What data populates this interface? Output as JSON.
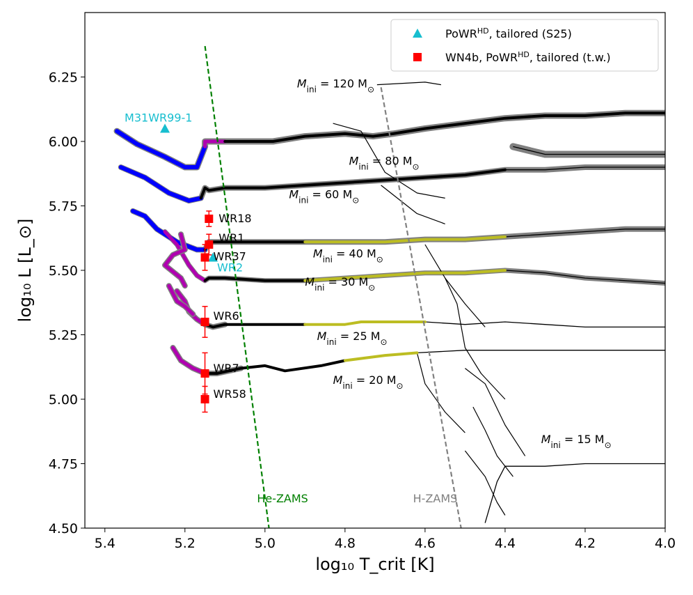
{
  "chart_data": {
    "type": "line",
    "xlabel": "log₁₀ T_crit [K]",
    "ylabel": "log₁₀ L [L_⊙]",
    "xlim": [
      5.45,
      4.0
    ],
    "ylim": [
      4.5,
      6.5
    ],
    "x_ticks": [
      "5.4",
      "5.2",
      "5.0",
      "4.8",
      "4.6",
      "4.4",
      "4.2",
      "4.0"
    ],
    "y_ticks": [
      "4.50",
      "4.75",
      "5.00",
      "5.25",
      "5.50",
      "5.75",
      "6.00",
      "6.25"
    ],
    "legend_position": "top-right",
    "legend": [
      {
        "label": "PoWR",
        "sup": "HD",
        "suffix": ", tailored (S25)",
        "marker": "triangle",
        "color": "#17becf"
      },
      {
        "label": "WN4b, PoWR",
        "sup": "HD",
        "suffix": ", tailored (t.w.)",
        "marker": "square",
        "color": "#ff0000"
      }
    ],
    "tracks": [
      {
        "name": "Mini = 120 M⊙",
        "label_main": "M",
        "label_sub": "ini",
        "label_tail": " = 120 M",
        "points": [
          [
            5.37,
            6.04
          ],
          [
            5.32,
            5.99
          ],
          [
            5.25,
            5.94
          ],
          [
            5.2,
            5.9
          ],
          [
            5.17,
            5.9
          ],
          [
            5.15,
            5.98
          ],
          [
            5.15,
            6.0
          ],
          [
            5.14,
            6.0
          ],
          [
            5.1,
            6.0
          ],
          [
            5.05,
            6.0
          ],
          [
            4.98,
            6.0
          ],
          [
            4.9,
            6.02
          ],
          [
            4.8,
            6.03
          ],
          [
            4.73,
            6.02
          ],
          [
            4.68,
            6.03
          ],
          [
            4.6,
            6.05
          ],
          [
            4.5,
            6.07
          ],
          [
            4.4,
            6.09
          ],
          [
            4.3,
            6.1
          ],
          [
            4.2,
            6.1
          ],
          [
            4.1,
            6.11
          ],
          [
            4.0,
            6.11
          ]
        ]
      },
      {
        "name": "Mini = 80 M⊙",
        "label_main": "M",
        "label_sub": "ini",
        "label_tail": " = 80 M",
        "points": [
          [
            4.38,
            5.98
          ],
          [
            4.3,
            5.95
          ],
          [
            4.2,
            5.95
          ],
          [
            4.1,
            5.95
          ],
          [
            4.0,
            5.95
          ]
        ]
      },
      {
        "name": "Mini = 60 M⊙",
        "label_main": "M",
        "label_sub": "ini",
        "label_tail": " = 60 M",
        "points": [
          [
            5.36,
            5.9
          ],
          [
            5.3,
            5.86
          ],
          [
            5.24,
            5.8
          ],
          [
            5.19,
            5.77
          ],
          [
            5.16,
            5.78
          ],
          [
            5.15,
            5.82
          ],
          [
            5.14,
            5.81
          ],
          [
            5.1,
            5.82
          ],
          [
            5.0,
            5.82
          ],
          [
            4.9,
            5.83
          ],
          [
            4.8,
            5.84
          ],
          [
            4.7,
            5.85
          ],
          [
            4.6,
            5.86
          ],
          [
            4.5,
            5.87
          ],
          [
            4.4,
            5.89
          ],
          [
            4.3,
            5.89
          ],
          [
            4.2,
            5.9
          ],
          [
            4.1,
            5.9
          ],
          [
            4.0,
            5.9
          ]
        ]
      },
      {
        "name": "Mini = 40 M⊙",
        "label_main": "M",
        "label_sub": "ini",
        "label_tail": " = 40 M",
        "points": [
          [
            5.33,
            5.73
          ],
          [
            5.3,
            5.71
          ],
          [
            5.27,
            5.66
          ],
          [
            5.22,
            5.61
          ],
          [
            5.17,
            5.58
          ],
          [
            5.15,
            5.58
          ],
          [
            5.14,
            5.61
          ],
          [
            5.1,
            5.61
          ],
          [
            5.0,
            5.61
          ],
          [
            4.9,
            5.61
          ],
          [
            4.8,
            5.61
          ],
          [
            4.7,
            5.61
          ],
          [
            4.6,
            5.62
          ],
          [
            4.5,
            5.62
          ],
          [
            4.4,
            5.63
          ],
          [
            4.3,
            5.64
          ],
          [
            4.2,
            5.65
          ],
          [
            4.1,
            5.66
          ],
          [
            4.0,
            5.66
          ]
        ]
      },
      {
        "name": "Mini = 30 M⊙",
        "label_main": "M",
        "label_sub": "ini",
        "label_tail": " = 30 M",
        "points": [
          [
            5.25,
            5.65
          ],
          [
            5.22,
            5.6
          ],
          [
            5.19,
            5.52
          ],
          [
            5.17,
            5.48
          ],
          [
            5.15,
            5.46
          ],
          [
            5.14,
            5.47
          ],
          [
            5.1,
            5.47
          ],
          [
            5.0,
            5.46
          ],
          [
            4.9,
            5.46
          ],
          [
            4.8,
            5.47
          ],
          [
            4.7,
            5.48
          ],
          [
            4.6,
            5.49
          ],
          [
            4.5,
            5.49
          ],
          [
            4.4,
            5.5
          ],
          [
            4.3,
            5.49
          ],
          [
            4.2,
            5.47
          ],
          [
            4.1,
            5.46
          ],
          [
            4.0,
            5.45
          ]
        ]
      },
      {
        "name": "Mini = 25 M⊙",
        "label_main": "M",
        "label_sub": "ini",
        "label_tail": " = 25 M",
        "points": [
          [
            5.22,
            5.42
          ],
          [
            5.2,
            5.38
          ],
          [
            5.19,
            5.34
          ],
          [
            5.17,
            5.31
          ],
          [
            5.15,
            5.29
          ],
          [
            5.13,
            5.28
          ],
          [
            5.1,
            5.29
          ],
          [
            5.0,
            5.29
          ],
          [
            4.95,
            5.29
          ],
          [
            4.9,
            5.29
          ],
          [
            4.8,
            5.29
          ],
          [
            4.76,
            5.3
          ],
          [
            4.6,
            5.3
          ],
          [
            4.5,
            5.29
          ],
          [
            4.4,
            5.3
          ],
          [
            4.3,
            5.29
          ],
          [
            4.2,
            5.28
          ],
          [
            4.1,
            5.28
          ],
          [
            4.0,
            5.28
          ]
        ]
      },
      {
        "name": "Mini = 20 M⊙",
        "label_main": "M",
        "label_sub": "ini",
        "label_tail": " = 20 M",
        "points": [
          [
            5.23,
            5.2
          ],
          [
            5.21,
            5.15
          ],
          [
            5.18,
            5.12
          ],
          [
            5.15,
            5.1
          ],
          [
            5.12,
            5.1
          ],
          [
            5.06,
            5.12
          ],
          [
            5.0,
            5.13
          ],
          [
            4.95,
            5.11
          ],
          [
            4.86,
            5.13
          ],
          [
            4.8,
            5.15
          ],
          [
            4.7,
            5.17
          ],
          [
            4.62,
            5.18
          ],
          [
            4.5,
            5.19
          ],
          [
            4.4,
            5.19
          ],
          [
            4.3,
            5.19
          ],
          [
            4.2,
            5.19
          ],
          [
            4.1,
            5.19
          ],
          [
            4.0,
            5.19
          ]
        ]
      },
      {
        "name": "Mini = 15 M⊙",
        "label_main": "M",
        "label_sub": "ini",
        "label_tail": " = 15 M",
        "points": [
          [
            4.45,
            4.52
          ],
          [
            4.42,
            4.68
          ],
          [
            4.4,
            4.74
          ],
          [
            4.35,
            4.74
          ],
          [
            4.3,
            4.74
          ],
          [
            4.2,
            4.75
          ],
          [
            4.1,
            4.75
          ],
          [
            4.0,
            4.75
          ]
        ]
      }
    ],
    "zams_lines": [
      {
        "name": "He-ZAMS",
        "color": "#008000",
        "points": [
          [
            5.15,
            6.37
          ],
          [
            4.99,
            4.5
          ]
        ]
      },
      {
        "name": "H-ZAMS",
        "color": "#808080",
        "points": [
          [
            4.71,
            6.21
          ],
          [
            4.51,
            4.5
          ]
        ]
      }
    ],
    "stars": [
      {
        "name": "WR18",
        "x": 5.14,
        "y": 5.7,
        "yerr": 0.03
      },
      {
        "name": "WR1",
        "x": 5.14,
        "y": 5.6,
        "yerr": 0.04
      },
      {
        "name": "WR37",
        "x": 5.15,
        "y": 5.55,
        "yerr": 0.05
      },
      {
        "name": "WR6",
        "x": 5.15,
        "y": 5.3,
        "yerr": 0.06
      },
      {
        "name": "WR7",
        "x": 5.15,
        "y": 5.1,
        "yerr": 0.08
      },
      {
        "name": "WR58",
        "x": 5.15,
        "y": 5.0,
        "yerr": 0.05
      }
    ],
    "s25_stars": [
      {
        "name": "M31WR99-1",
        "x": 5.25,
        "y": 6.05
      },
      {
        "name": "WR2",
        "x": 5.13,
        "y": 5.55
      }
    ],
    "colors": {
      "blue": "#0000ff",
      "magenta": "#b000b0",
      "black": "#000000",
      "olive": "#bcbd22",
      "grey": "#808080",
      "red": "#ff0000",
      "cyan": "#17becf",
      "green": "#008000"
    }
  }
}
